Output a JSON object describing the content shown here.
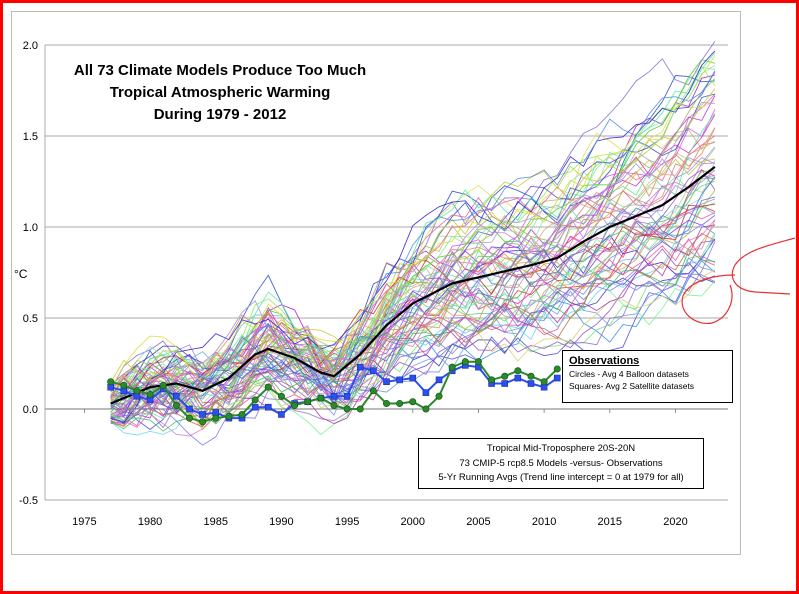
{
  "chart_data": {
    "type": "line",
    "title": [
      "All 73 Climate Models Produce Too Much",
      "Tropical Atmospheric Warming",
      "During 1979 - 2012"
    ],
    "ylabel": "°C",
    "xlim": [
      1972,
      2024
    ],
    "ylim": [
      -0.5,
      2.0
    ],
    "x_ticks": [
      1975,
      1980,
      1985,
      1990,
      1995,
      2000,
      2005,
      2010,
      2015,
      2020
    ],
    "y_ticks": [
      "-0.5",
      "0.0",
      "0.5",
      "1.0",
      "1.5",
      "2.0"
    ],
    "y_tick_values": [
      -0.5,
      0.0,
      0.5,
      1.0,
      1.5,
      2.0
    ],
    "model_count": 73,
    "model_mean": {
      "name": "Model mean (73 CMIP-5 rcp8.5)",
      "x": [
        1977,
        1980,
        1982,
        1984,
        1986,
        1988,
        1989,
        1991,
        1993,
        1994,
        1996,
        1998,
        2000,
        2003,
        2006,
        2009,
        2011,
        2013,
        2015,
        2017,
        2019,
        2021,
        2023
      ],
      "y": [
        0.03,
        0.12,
        0.14,
        0.1,
        0.17,
        0.3,
        0.33,
        0.28,
        0.2,
        0.18,
        0.3,
        0.46,
        0.58,
        0.69,
        0.74,
        0.79,
        0.83,
        0.92,
        1.0,
        1.06,
        1.12,
        1.22,
        1.33
      ]
    },
    "series": [
      {
        "name": "Satellite (Squares - Avg 2 Satellite datasets)",
        "marker": "square",
        "color": "#2b4ff0",
        "x": [
          1977,
          1978,
          1979,
          1980,
          1981,
          1982,
          1983,
          1984,
          1985,
          1986,
          1987,
          1988,
          1989,
          1990,
          1991,
          1992,
          1993,
          1994,
          1995,
          1996,
          1997,
          1998,
          1999,
          2000,
          2001,
          2002,
          2003,
          2004,
          2005,
          2006,
          2007,
          2008,
          2009,
          2010,
          2011
        ],
        "y": [
          0.12,
          0.1,
          0.07,
          0.05,
          0.11,
          0.07,
          0.0,
          -0.03,
          -0.02,
          -0.05,
          -0.05,
          0.01,
          0.01,
          -0.03,
          0.03,
          0.04,
          0.06,
          0.07,
          0.07,
          0.23,
          0.21,
          0.15,
          0.16,
          0.17,
          0.09,
          0.16,
          0.21,
          0.24,
          0.23,
          0.14,
          0.14,
          0.17,
          0.14,
          0.12,
          0.17
        ]
      },
      {
        "name": "Balloon (Circles - Avg 4 Balloon datasets)",
        "marker": "circle",
        "color": "#2a8a2a",
        "x": [
          1977,
          1978,
          1979,
          1980,
          1981,
          1982,
          1983,
          1984,
          1985,
          1986,
          1987,
          1988,
          1989,
          1990,
          1991,
          1992,
          1993,
          1994,
          1995,
          1996,
          1997,
          1998,
          1999,
          2000,
          2001,
          2002,
          2003,
          2004,
          2005,
          2006,
          2007,
          2008,
          2009,
          2010,
          2011
        ],
        "y": [
          0.15,
          0.13,
          0.1,
          0.08,
          0.13,
          0.02,
          -0.05,
          -0.07,
          -0.05,
          -0.04,
          -0.03,
          0.05,
          0.12,
          0.07,
          0.02,
          0.04,
          0.06,
          0.02,
          0.0,
          0.0,
          0.1,
          0.03,
          0.03,
          0.04,
          0.0,
          0.07,
          0.23,
          0.26,
          0.26,
          0.16,
          0.18,
          0.21,
          0.18,
          0.15,
          0.22
        ]
      }
    ],
    "legend": {
      "title": "Observations",
      "lines": [
        "Circles - Avg 4 Balloon datasets",
        "Squares- Avg 2 Satellite datasets"
      ]
    },
    "info_lines": [
      "Tropical Mid-Troposphere 20S-20N",
      "73 CMIP-5 rcp8.5 Models -versus- Observations",
      "5-Yr Running Avgs (Trend line intercept = 0 at 1979 for all)"
    ],
    "grid": true
  }
}
